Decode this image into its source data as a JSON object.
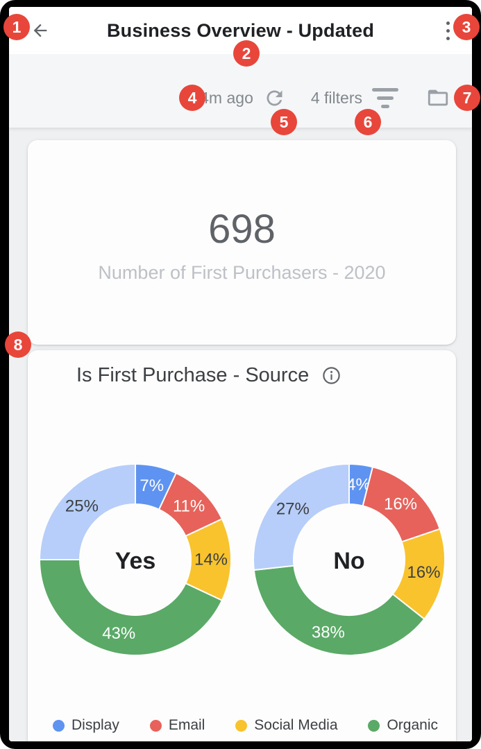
{
  "header": {
    "title": "Business Overview - Updated"
  },
  "toolbar": {
    "last_refresh": "4m ago",
    "filters_label": "4 filters"
  },
  "scorecard": {
    "value": "698",
    "label": "Number of First Purchasers - 2020"
  },
  "chart_card": {
    "title": "Is First Purchase - Source",
    "legend": {
      "items": [
        {
          "label": "Display",
          "color": "#5e93f1"
        },
        {
          "label": "Email",
          "color": "#e8625c"
        },
        {
          "label": "Social Media",
          "color": "#f9c32e"
        },
        {
          "label": "Organic",
          "color": "#5aa967"
        }
      ]
    }
  },
  "palette": {
    "blue": "#5e93f1",
    "red": "#e8625c",
    "yellow": "#f9c32e",
    "green": "#5aa967",
    "lightblue": "#b6cef9"
  },
  "chart_data": [
    {
      "type": "pie",
      "title": "Is First Purchase - Source",
      "center_label": "Yes",
      "legend_position": "bottom",
      "slices": [
        {
          "pct": 7,
          "color": "blue",
          "label_style": "light"
        },
        {
          "pct": 11,
          "color": "red",
          "label_style": "light"
        },
        {
          "pct": 14,
          "color": "yellow",
          "label_style": "dark"
        },
        {
          "pct": 43,
          "color": "green",
          "label_style": "light"
        },
        {
          "pct": 25,
          "color": "lightblue",
          "label_style": "dark"
        }
      ]
    },
    {
      "type": "pie",
      "title": "Is First Purchase - Source",
      "center_label": "No",
      "legend_position": "bottom",
      "slices": [
        {
          "pct": 4,
          "color": "blue",
          "label_style": "light"
        },
        {
          "pct": 16,
          "color": "red",
          "label_style": "light"
        },
        {
          "pct": 16,
          "color": "yellow",
          "label_style": "dark"
        },
        {
          "pct": 38,
          "color": "green",
          "label_style": "light"
        },
        {
          "pct": 27,
          "color": "lightblue",
          "label_style": "dark"
        }
      ]
    }
  ],
  "annotations": {
    "color": "#e8453b",
    "badges": [
      "1",
      "2",
      "3",
      "4",
      "5",
      "6",
      "7",
      "8"
    ]
  }
}
